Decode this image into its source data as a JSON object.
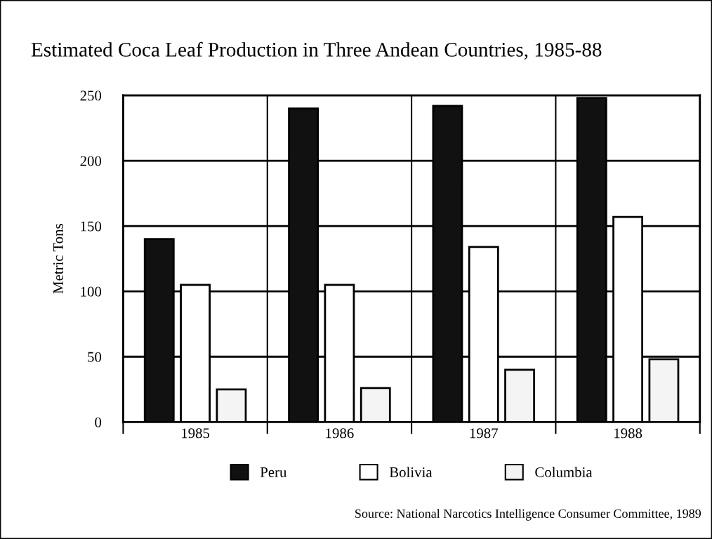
{
  "chart_data": {
    "type": "bar",
    "title": "Estimated Coca Leaf Production in Three Andean Countries, 1985-88",
    "ylabel": "Metric Tons",
    "categories": [
      "1985",
      "1986",
      "1987",
      "1988"
    ],
    "series": [
      {
        "name": "Peru",
        "color": "#111111",
        "values": [
          140,
          240,
          242,
          248
        ]
      },
      {
        "name": "Bolivia",
        "color": "#ffffff",
        "values": [
          105,
          105,
          134,
          157
        ]
      },
      {
        "name": "Columbia",
        "color": "#f4f4f4",
        "values": [
          25,
          26,
          40,
          48
        ]
      }
    ],
    "ylim": [
      0,
      250
    ],
    "yticks": [
      0,
      50,
      100,
      150,
      200,
      250
    ],
    "grid": true,
    "legend": "bottom",
    "annotations": [
      "Source: National Narcotics Intelligence Consumer Committee, 1989"
    ]
  }
}
